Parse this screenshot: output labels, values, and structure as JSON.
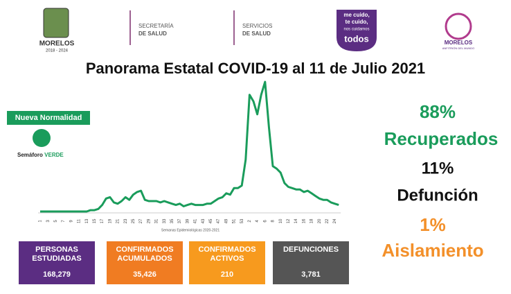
{
  "header": {
    "state_logo": [
      "MORELOS",
      "2018 - 2024"
    ],
    "secretaria": [
      "SECRETARÍA",
      "DE SALUD"
    ],
    "servicios": [
      "SERVICIOS",
      "DE SALUD"
    ],
    "campaign": [
      "me cuido,",
      "te cuido,",
      "nos cuidamos",
      "todos"
    ],
    "anfitrion": [
      "MORELOS",
      "ANFITRIÓN DEL MUNDO"
    ]
  },
  "chart_data": {
    "type": "line",
    "title": "Panorama Estatal COVID-19 al 11 de Julio 2021",
    "x_label": "Semanas Epidemiológicas 2020-2021",
    "color": "#1a9c5b",
    "ylim": [
      0,
      100
    ],
    "categories": [
      "1",
      null,
      "3",
      null,
      "5",
      null,
      "7",
      null,
      "9",
      null,
      "11",
      null,
      "13",
      null,
      "15",
      null,
      "17",
      null,
      "19",
      null,
      "21",
      null,
      "23",
      null,
      "25",
      null,
      "27",
      null,
      "29",
      null,
      "31",
      null,
      "33",
      null,
      "35",
      null,
      "37",
      null,
      "39",
      null,
      "41",
      null,
      "43",
      null,
      "45",
      null,
      "47",
      null,
      "49",
      null,
      "51",
      null,
      "53",
      null,
      "2",
      null,
      "4",
      null,
      "6",
      null,
      "8",
      null,
      "10",
      null,
      "12",
      null,
      "14",
      null,
      "16",
      null,
      "18",
      null,
      "20",
      null,
      "22",
      null,
      "24",
      null
    ],
    "values": [
      0,
      0,
      0,
      0,
      0,
      0,
      0,
      0,
      0,
      0,
      0,
      0,
      0,
      1,
      1,
      2,
      5,
      10,
      11,
      7,
      6,
      8,
      11,
      9,
      13,
      15,
      16,
      9,
      8,
      8,
      8,
      7,
      8,
      7,
      6,
      5,
      6,
      4,
      5,
      6,
      5,
      5,
      5,
      6,
      6,
      8,
      10,
      11,
      14,
      13,
      18,
      18,
      20,
      40,
      90,
      85,
      75,
      90,
      100,
      65,
      35,
      33,
      30,
      22,
      19,
      18,
      17,
      17,
      15,
      16,
      14,
      12,
      10,
      9,
      9,
      7,
      6,
      5
    ]
  },
  "status": {
    "badge": "Nueva Normalidad",
    "semaforo": "Semáforo",
    "semaforo_color": "VERDE"
  },
  "stats": [
    {
      "percent": "88%",
      "label": "Recuperados"
    },
    {
      "percent": "11%",
      "label": "Defunción"
    },
    {
      "percent": "1%",
      "label": "Aislamiento"
    }
  ],
  "boxes": [
    {
      "title": [
        "PERSONAS",
        "ESTUDIADAS"
      ],
      "value": "168,279"
    },
    {
      "title": [
        "CONFIRMADOS",
        "ACUMULADOS"
      ],
      "value": "35,426"
    },
    {
      "title": [
        "CONFIRMADOS",
        "ACTIVOS"
      ],
      "value": "210"
    },
    {
      "title": [
        "DEFUNCIONES"
      ],
      "value": "3,781"
    }
  ]
}
